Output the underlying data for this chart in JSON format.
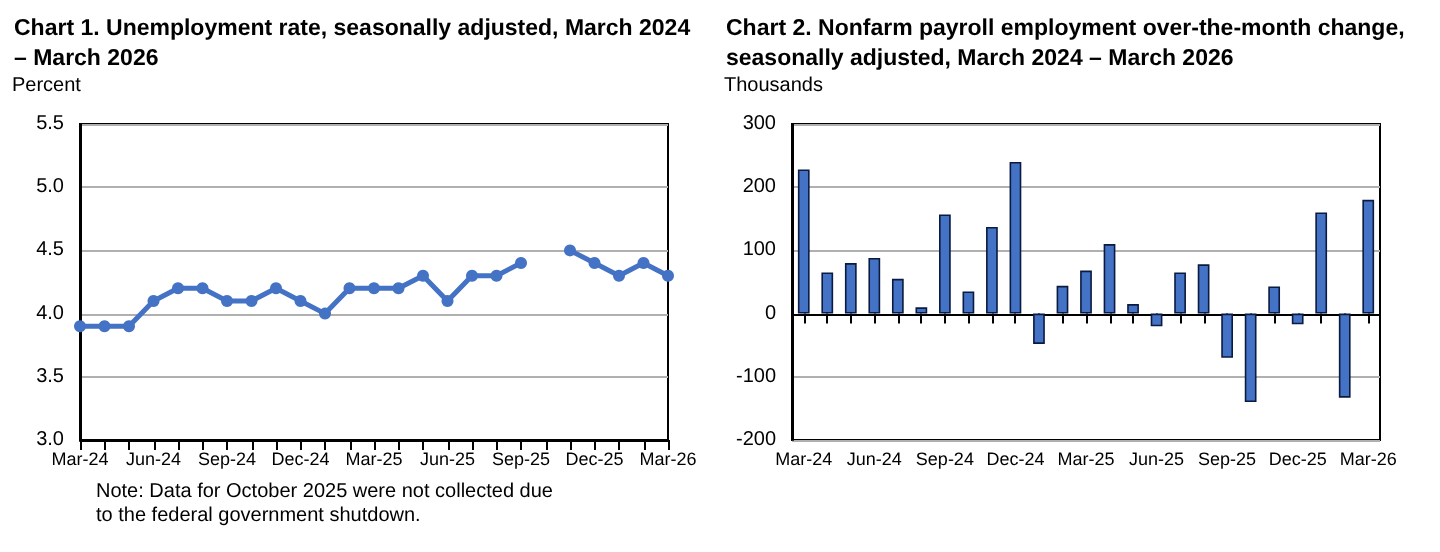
{
  "chart_data": [
    {
      "type": "line",
      "title": "Chart 1. Unemployment rate, seasonally adjusted, March 2024 – March 2026",
      "ylabel": "Percent",
      "categories": [
        "Mar-24",
        null,
        null,
        "Jun-24",
        null,
        null,
        "Sep-24",
        null,
        null,
        "Dec-24",
        null,
        null,
        "Mar-25",
        null,
        null,
        "Jun-25",
        null,
        null,
        "Sep-25",
        null,
        null,
        "Dec-25",
        null,
        null,
        "Mar-26"
      ],
      "values": [
        3.9,
        3.9,
        3.9,
        4.1,
        4.2,
        4.2,
        4.1,
        4.1,
        4.2,
        4.1,
        4.0,
        4.2,
        4.2,
        4.2,
        4.3,
        4.1,
        4.3,
        4.3,
        4.4,
        null,
        4.5,
        4.4,
        4.3,
        4.4,
        4.3
      ],
      "color": "#4472c4",
      "marker": "circle",
      "ylim": [
        3,
        5.5
      ],
      "yticks": [
        {
          "value": 3,
          "label": "3.0"
        },
        3.5,
        {
          "value": 4,
          "label": "4.0"
        },
        4.5,
        {
          "value": 5,
          "label": "5.0"
        },
        5.5
      ],
      "grid": "y",
      "annotations": [
        "Note: Data for October 2025 were not collected due to the federal government shutdown."
      ]
    },
    {
      "type": "bar",
      "title": "Chart 2. Nonfarm payroll employment over-the-month change, seasonally adjusted, March 2024 – March 2026",
      "ylabel": "Thousands",
      "categories": [
        "Mar-24",
        null,
        null,
        "Jun-24",
        null,
        null,
        "Sep-24",
        null,
        null,
        "Dec-24",
        null,
        null,
        "Mar-25",
        null,
        null,
        "Jun-25",
        null,
        null,
        "Sep-25",
        null,
        null,
        "Dec-25",
        null,
        null,
        "Mar-26"
      ],
      "values": [
        228,
        65,
        80,
        88,
        55,
        10,
        157,
        35,
        137,
        240,
        -48,
        44,
        68,
        110,
        15,
        -20,
        65,
        78,
        -70,
        -140,
        43,
        -17,
        160,
        -133,
        180
      ],
      "color": "#4472c4",
      "ylim": [
        -200,
        300
      ],
      "yticks": [
        -200,
        -100,
        0,
        100,
        200,
        300
      ],
      "grid": "y"
    }
  ]
}
